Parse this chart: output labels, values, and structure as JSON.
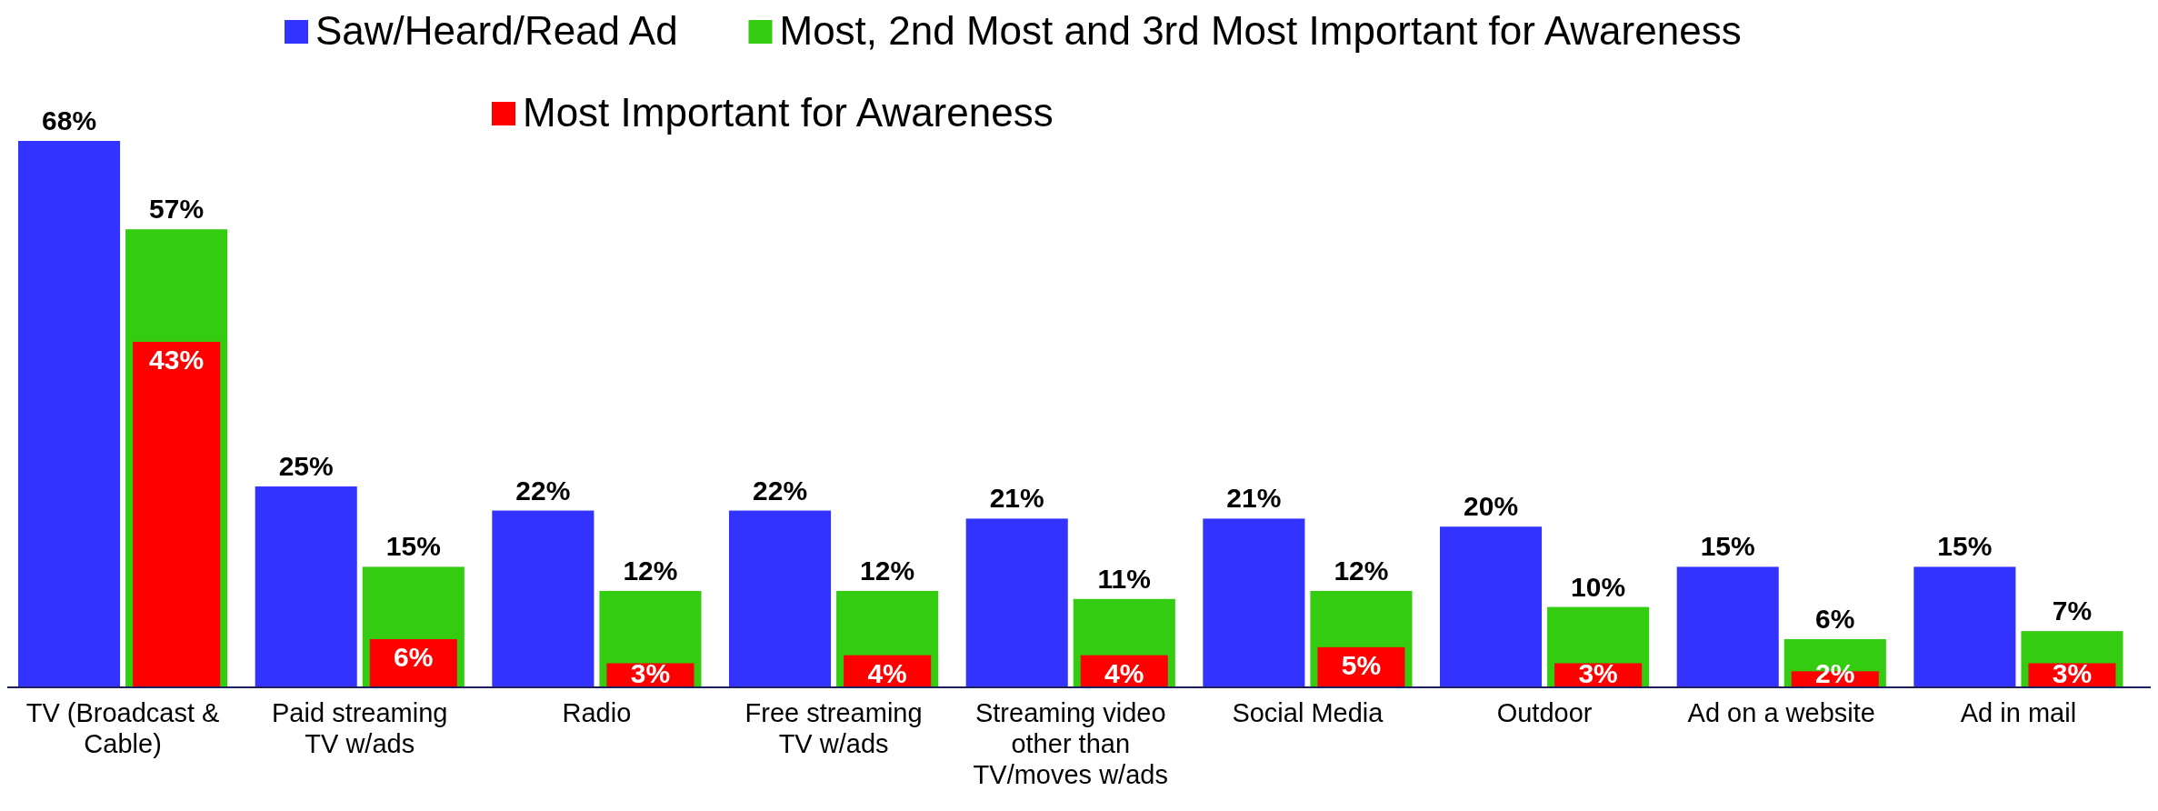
{
  "chart_data": {
    "type": "bar",
    "legend": "top",
    "categories": [
      "TV (Broadcast & Cable)",
      "Paid streaming TV w/ads",
      "Radio",
      "Free streaming TV w/ads",
      "Streaming video other than TV/moves w/ads",
      "Social Media",
      "Outdoor",
      "Ad on a website",
      "Ad in mail"
    ],
    "series": [
      {
        "name": "Saw/Heard/Read Ad",
        "color": "#3333ff",
        "values": [
          68,
          25,
          22,
          22,
          21,
          21,
          20,
          15,
          15
        ],
        "value_labels": [
          "68%",
          "25%",
          "22%",
          "22%",
          "21%",
          "21%",
          "20%",
          "15%",
          "15%"
        ]
      },
      {
        "name": "Most, 2nd Most and 3rd Most Important for Awareness",
        "color": "#33cc11",
        "values": [
          57,
          15,
          12,
          12,
          11,
          12,
          10,
          6,
          7
        ],
        "value_labels": [
          "57%",
          "15%",
          "12%",
          "12%",
          "11%",
          "12%",
          "10%",
          "6%",
          "7%"
        ]
      },
      {
        "name": "Most Important for Awareness",
        "color": "#ff0000",
        "values": [
          43,
          6,
          3,
          4,
          4,
          5,
          3,
          2,
          3
        ],
        "value_labels": [
          "43%",
          "6%",
          "3%",
          "4%",
          "4%",
          "5%",
          "3%",
          "2%",
          "3%"
        ]
      }
    ]
  }
}
